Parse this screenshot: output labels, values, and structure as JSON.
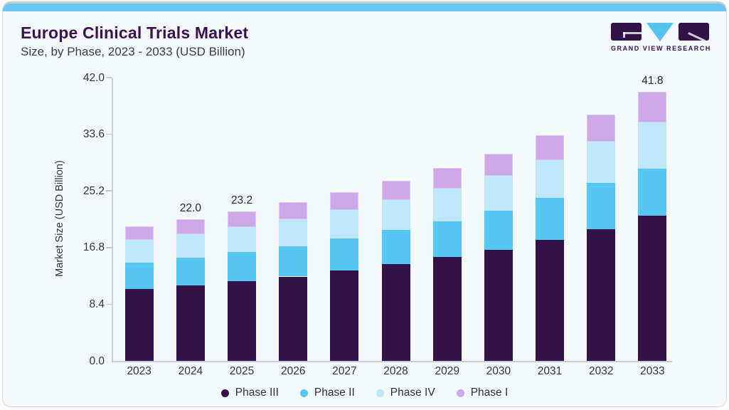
{
  "header": {
    "title": "Europe Clinical Trials Market",
    "subtitle": "Size, by Phase, 2023 - 2033 (USD Billion)"
  },
  "logo": {
    "wordmark": "GRAND VIEW RESEARCH",
    "block_color": "#301347",
    "triangle_color": "#56C3EF"
  },
  "colors": {
    "accent_strip": "#69C6F1",
    "card_background": "#F3F8FB",
    "title_text": "#3A1156",
    "axis_line": "#C7CBCF"
  },
  "chart_data": {
    "type": "bar",
    "stacked": true,
    "title": "Europe Clinical Trials Market Size, by Phase, 2023 - 2033 (USD Billion)",
    "xlabel": "",
    "ylabel": "Market Size (USD Billion)",
    "categories": [
      "2023",
      "2024",
      "2025",
      "2026",
      "2027",
      "2028",
      "2029",
      "2030",
      "2031",
      "2032",
      "2033"
    ],
    "series": [
      {
        "name": "Phase III",
        "color": "#321249",
        "values": [
          11.2,
          11.7,
          12.4,
          13.1,
          14.0,
          15.0,
          16.1,
          17.3,
          18.8,
          20.5,
          22.6
        ]
      },
      {
        "name": "Phase II",
        "color": "#56C6F2",
        "values": [
          4.1,
          4.3,
          4.5,
          4.7,
          5.0,
          5.3,
          5.6,
          6.0,
          6.5,
          7.1,
          7.3
        ]
      },
      {
        "name": "Phase IV",
        "color": "#BEE7F9",
        "values": [
          3.5,
          3.7,
          3.9,
          4.2,
          4.4,
          4.7,
          5.0,
          5.4,
          5.9,
          6.4,
          7.1
        ]
      },
      {
        "name": "Phase I",
        "color": "#CDA8E9",
        "values": [
          2.1,
          2.3,
          2.4,
          2.6,
          2.8,
          3.0,
          3.3,
          3.5,
          3.8,
          4.2,
          4.8
        ]
      }
    ],
    "totals": [
      20.9,
      22.0,
      23.2,
      24.6,
      26.2,
      28.0,
      30.0,
      32.2,
      35.0,
      38.2,
      41.8
    ],
    "bar_value_labels": [
      "",
      "22.0",
      "23.2",
      "",
      "",
      "",
      "",
      "",
      "",
      "",
      "41.8"
    ],
    "ytick_labels": [
      "0.0",
      "8.4",
      "16.8",
      "25.2",
      "33.6",
      "42.0"
    ],
    "yticks": [
      0.0,
      8.4,
      16.8,
      25.2,
      33.6,
      42.0
    ],
    "ylim": [
      0,
      42
    ],
    "legend_position": "bottom",
    "grid": false
  }
}
